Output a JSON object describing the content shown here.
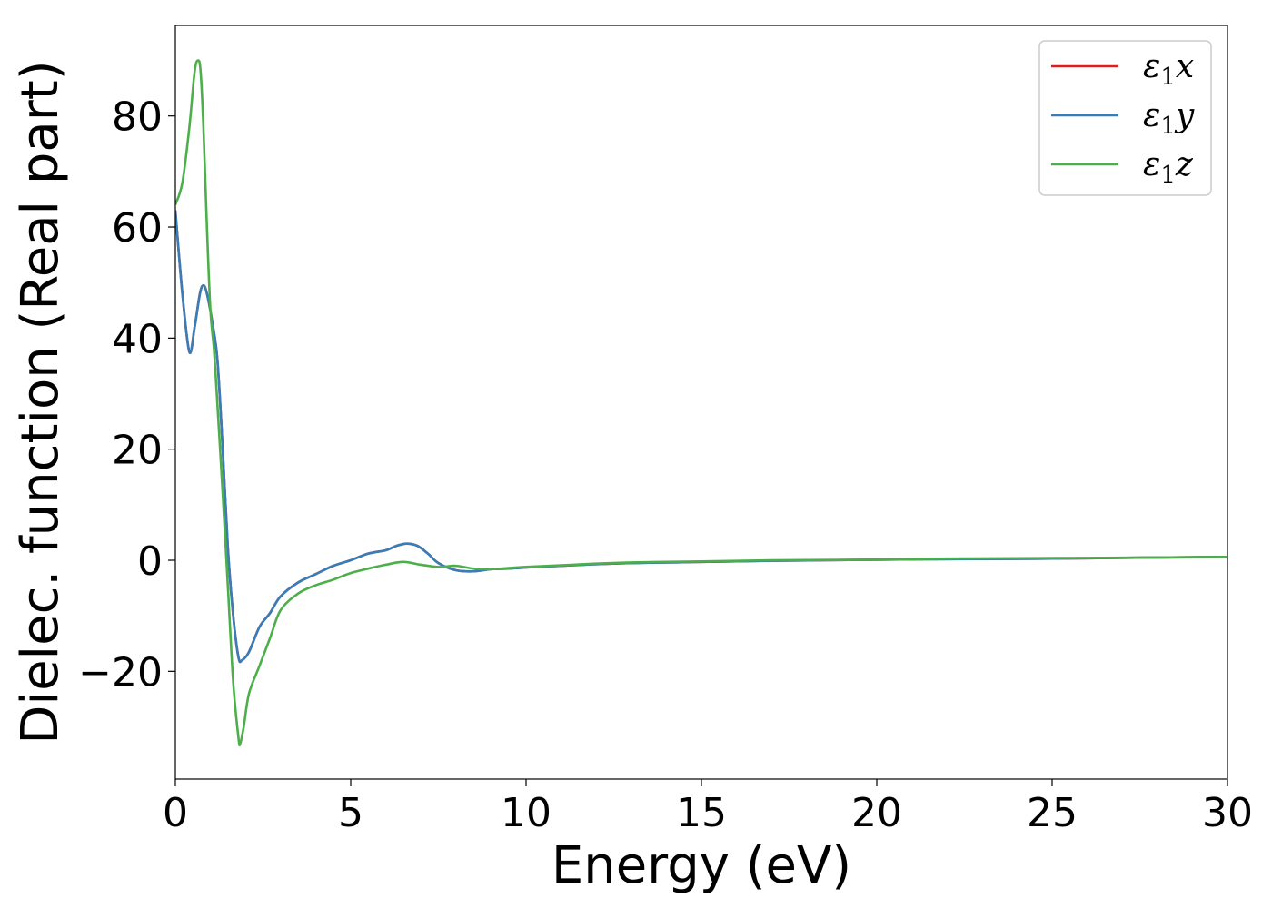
{
  "chart_data": {
    "type": "line",
    "title": "",
    "xlabel": "Energy (eV)",
    "ylabel": "Dielec. function (Real part)",
    "xlim": [
      0,
      30
    ],
    "ylim": [
      -39.4,
      96.3
    ],
    "xticks": [
      0,
      5,
      10,
      15,
      20,
      25,
      30
    ],
    "xtick_labels": [
      "0",
      "5",
      "10",
      "15",
      "20",
      "25",
      "30"
    ],
    "yticks": [
      -20,
      0,
      20,
      40,
      60,
      80
    ],
    "ytick_labels": [
      "−20",
      "0",
      "20",
      "40",
      "60",
      "80"
    ],
    "grid": false,
    "legend_position": "top-right",
    "series": [
      {
        "name": "ε1x",
        "legend_main": "ε",
        "legend_sub": "1",
        "legend_var": "x",
        "color": "#e41a1c",
        "x": [
          0,
          0.2,
          0.4,
          0.55,
          0.7,
          0.8,
          0.9,
          1.05,
          1.2,
          1.35,
          1.5,
          1.65,
          1.8,
          1.9,
          2.1,
          2.4,
          2.7,
          3.0,
          3.5,
          4.0,
          4.5,
          5.0,
          5.5,
          6.0,
          6.3,
          6.6,
          6.9,
          7.2,
          7.5,
          8.0,
          8.5,
          9.0,
          9.5,
          10,
          11,
          12,
          13,
          14,
          15,
          17,
          20,
          22,
          25,
          28,
          30
        ],
        "y": [
          63,
          48,
          37.5,
          42,
          48,
          49.5,
          48,
          43,
          36,
          20,
          2,
          -10,
          -17.5,
          -18,
          -16.5,
          -12,
          -9.5,
          -6.5,
          -4,
          -2.5,
          -1,
          0,
          1.2,
          1.8,
          2.6,
          3.0,
          2.6,
          1.2,
          -0.5,
          -1.8,
          -2.0,
          -1.6,
          -1.5,
          -1.3,
          -1.0,
          -0.7,
          -0.5,
          -0.4,
          -0.3,
          -0.1,
          0.1,
          0.2,
          0.3,
          0.5,
          0.6
        ]
      },
      {
        "name": "ε1y",
        "legend_main": "ε",
        "legend_sub": "1",
        "legend_var": "y",
        "color": "#377eb8",
        "x": [
          0,
          0.2,
          0.4,
          0.55,
          0.7,
          0.8,
          0.9,
          1.05,
          1.2,
          1.35,
          1.5,
          1.65,
          1.8,
          1.9,
          2.1,
          2.4,
          2.7,
          3.0,
          3.5,
          4.0,
          4.5,
          5.0,
          5.5,
          6.0,
          6.3,
          6.6,
          6.9,
          7.2,
          7.5,
          8.0,
          8.5,
          9.0,
          9.5,
          10,
          11,
          12,
          13,
          14,
          15,
          17,
          20,
          22,
          25,
          28,
          30
        ],
        "y": [
          63,
          48,
          37.5,
          42,
          48,
          49.5,
          48,
          43,
          36,
          20,
          2,
          -10,
          -17.5,
          -18,
          -16.5,
          -12,
          -9.5,
          -6.5,
          -4,
          -2.5,
          -1,
          0,
          1.2,
          1.8,
          2.6,
          3.0,
          2.6,
          1.2,
          -0.5,
          -1.8,
          -2.0,
          -1.6,
          -1.5,
          -1.3,
          -1.0,
          -0.7,
          -0.5,
          -0.4,
          -0.3,
          -0.1,
          0.1,
          0.2,
          0.3,
          0.5,
          0.6
        ]
      },
      {
        "name": "ε1z",
        "legend_main": "ε",
        "legend_sub": "1",
        "legend_var": "z",
        "color": "#4daf4a",
        "x": [
          0,
          0.2,
          0.4,
          0.55,
          0.65,
          0.72,
          0.8,
          0.9,
          1.0,
          1.1,
          1.2,
          1.35,
          1.5,
          1.65,
          1.8,
          1.85,
          1.95,
          2.1,
          2.4,
          2.7,
          3.0,
          3.5,
          4.0,
          4.5,
          5.0,
          5.5,
          6.0,
          6.5,
          7.0,
          7.5,
          8.0,
          8.5,
          9.0,
          9.5,
          10,
          11,
          12,
          13,
          14,
          15,
          17,
          20,
          22,
          25,
          28,
          30
        ],
        "y": [
          64,
          68,
          78,
          88,
          90,
          88,
          78,
          60,
          45,
          38,
          28,
          12,
          -5,
          -22,
          -32,
          -33,
          -30,
          -24,
          -19,
          -14,
          -9,
          -6,
          -4.5,
          -3.5,
          -2.3,
          -1.5,
          -0.8,
          -0.3,
          -0.8,
          -1.2,
          -1.0,
          -1.5,
          -1.6,
          -1.4,
          -1.2,
          -0.9,
          -0.6,
          -0.4,
          -0.3,
          -0.2,
          0,
          0.1,
          0.3,
          0.4,
          0.5,
          0.6
        ]
      }
    ]
  }
}
